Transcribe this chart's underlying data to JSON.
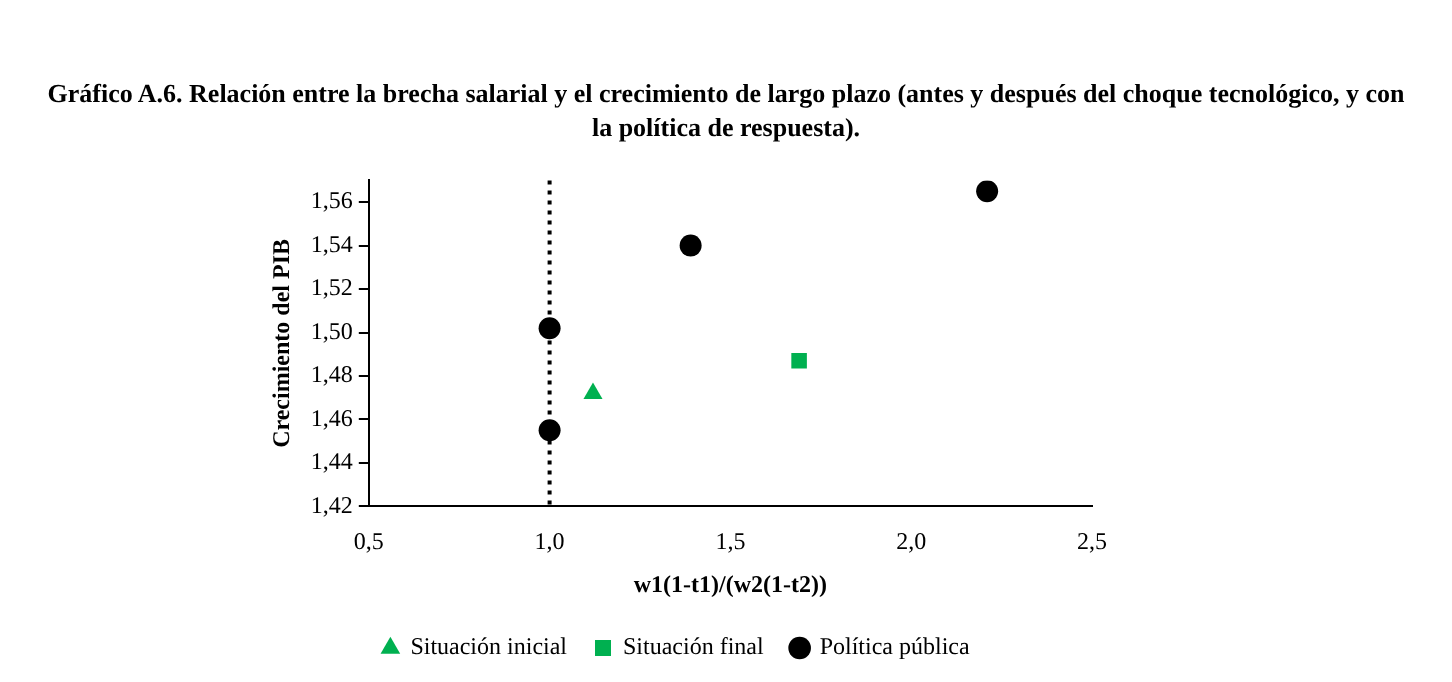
{
  "chart_data": {
    "type": "scatter",
    "title": "Gráfico A.6. Relación entre la brecha salarial y el crecimiento de largo plazo (antes y después del choque tecnológico, y con la política de respuesta).",
    "xlabel": "w1(1-t1)/(w2(1-t2))",
    "ylabel": "Crecimiento del PIB",
    "xlim": [
      0.5,
      2.5
    ],
    "xticks": [
      {
        "value": 0.5,
        "label": "0,5"
      },
      {
        "value": 1,
        "label": "1,0"
      },
      {
        "value": 1.5,
        "label": "1,5"
      },
      {
        "value": 2,
        "label": "2,0"
      },
      {
        "value": 2.5,
        "label": "2,5"
      }
    ],
    "ylim": [
      1.42,
      1.57
    ],
    "yticks": [
      {
        "value": 1.42,
        "label": "1,42"
      },
      {
        "value": 1.44,
        "label": "1,44"
      },
      {
        "value": 1.46,
        "label": "1,46"
      },
      {
        "value": 1.48,
        "label": "1,48"
      },
      {
        "value": 1.5,
        "label": "1,50"
      },
      {
        "value": 1.52,
        "label": "1,52"
      },
      {
        "value": 1.54,
        "label": "1,54"
      },
      {
        "value": 1.56,
        "label": "1,56"
      }
    ],
    "grid": false,
    "legend": "bottom",
    "ref_lines": [
      {
        "axis": "x",
        "value": 1,
        "line_style": "dotted",
        "color": "#000000"
      }
    ],
    "series": [
      {
        "name": "Situación inicial",
        "color": "#00b050",
        "marker": "triangle",
        "x": [
          1.12
        ],
        "values": [
          1.472
        ]
      },
      {
        "name": "Situación final",
        "color": "#00b050",
        "marker": "square",
        "x": [
          1.69
        ],
        "values": [
          1.487
        ]
      },
      {
        "name": "Política pública",
        "color": "#000000",
        "marker": "circle",
        "x": [
          1,
          1,
          1.39,
          2.21
        ],
        "values": [
          1.455,
          1.502,
          1.54,
          1.565
        ]
      }
    ]
  }
}
